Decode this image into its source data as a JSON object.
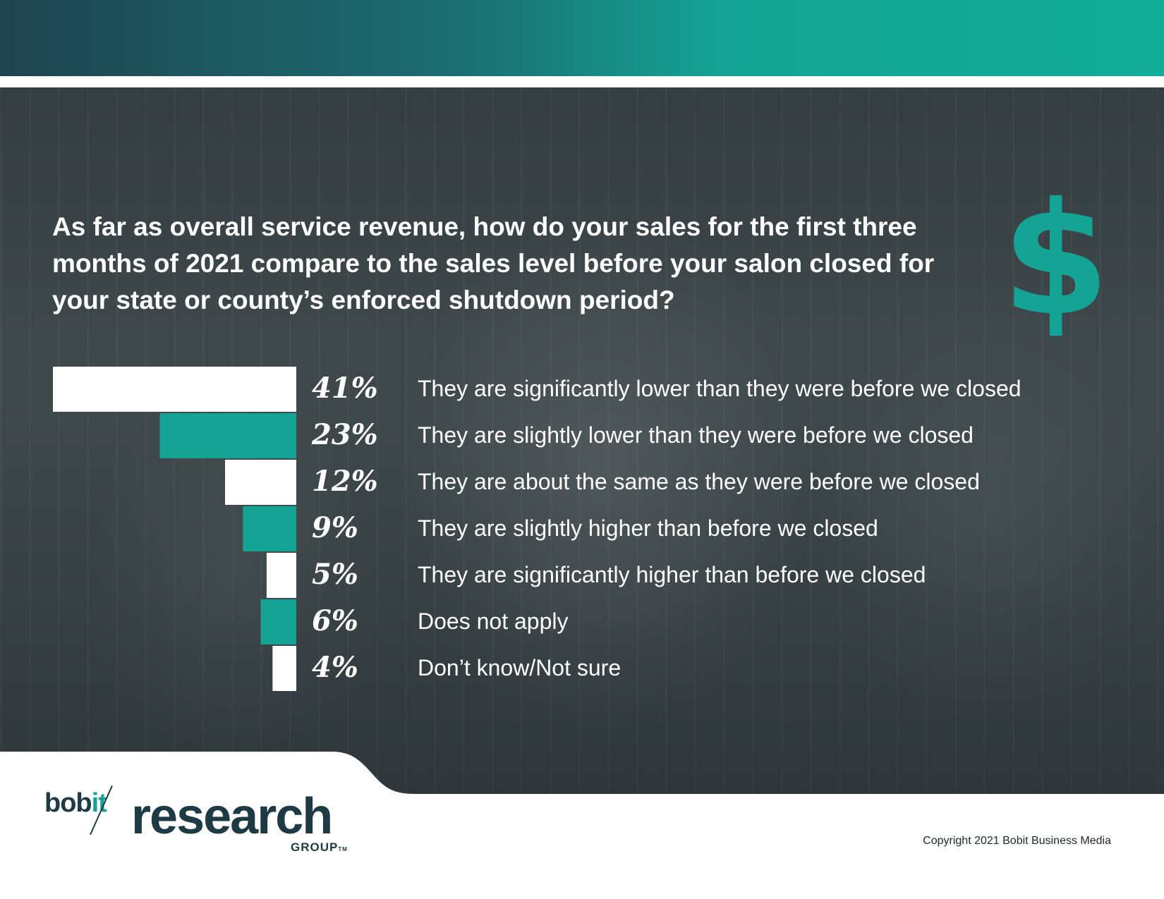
{
  "question": "As far as overall service revenue, how do your sales for the first three months of 2021 compare to the sales level before your salon closed for your state or county’s enforced shutdown period?",
  "icon": "dollar-sign-icon",
  "icon_glyph": "$",
  "colors": {
    "accent": "#14a394",
    "bar_white": "#ffffff",
    "header_dark": "#1f4450",
    "brand_navy": "#1e3b45"
  },
  "chart_data": {
    "type": "bar",
    "orientation": "horizontal",
    "categories": [
      "They are significantly lower than they were before we closed",
      "They are slightly lower than they were before we closed",
      "They are about the same as they were before we closed",
      "They are slightly higher than before we closed",
      "They are significantly higher than before we closed",
      "Does not apply",
      "Don’t know/Not sure"
    ],
    "values": [
      41,
      23,
      12,
      9,
      5,
      6,
      4
    ],
    "value_labels": [
      "41%",
      "23%",
      "12%",
      "9%",
      "5%",
      "6%",
      "4%"
    ],
    "bar_colors": [
      "#ffffff",
      "#14a394",
      "#ffffff",
      "#14a394",
      "#ffffff",
      "#14a394",
      "#ffffff"
    ],
    "xlim": [
      0,
      41
    ],
    "grid": false
  },
  "logo": {
    "bobit_prefix": "bob",
    "bobit_suffix": "it",
    "research": "research",
    "group": "GROUP",
    "tm": "TM"
  },
  "copyright": "Copyright 2021 Bobit Business Media"
}
